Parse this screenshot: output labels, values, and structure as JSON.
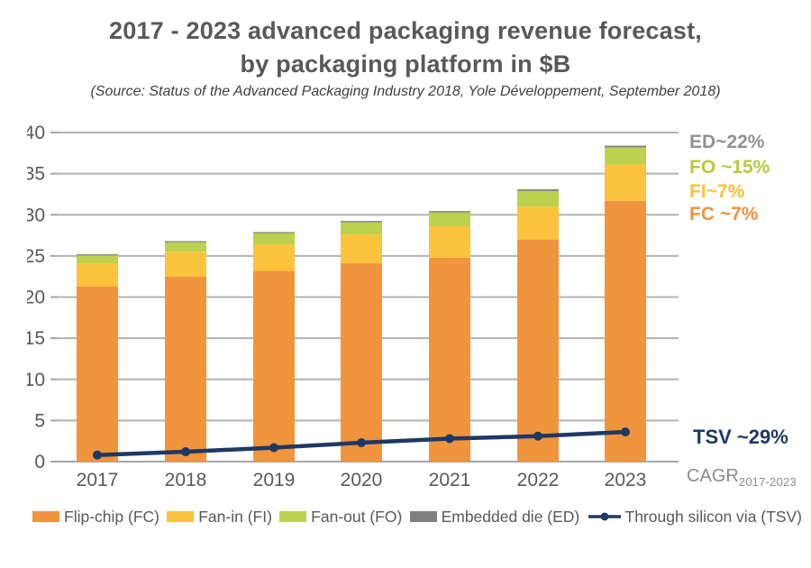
{
  "title": {
    "line1": "2017 - 2023 advanced packaging revenue forecast,",
    "line2": "by packaging platform in $B"
  },
  "source": "(Source: Status of the Advanced Packaging Industry 2018, Yole Développement, September 2018)",
  "annotations": {
    "ed": {
      "text": "ED~22%",
      "color": "#929292"
    },
    "fo": {
      "text": "FO ~15%",
      "color": "#B2CC3F"
    },
    "fi": {
      "text": "FI~7%",
      "color": "#FBBF39"
    },
    "fc": {
      "text": "FC ~7%",
      "color": "#F0943E"
    },
    "tsv": {
      "text": "TSV ~29%",
      "color": "#1F3864"
    },
    "cagr": {
      "label": "CAGR",
      "subscript": "2017-2023",
      "color": "#8C8C8C"
    }
  },
  "chart_data": {
    "type": "bar",
    "subtype": "stacked-bars-with-line-overlay",
    "title": "2017 - 2023 advanced packaging revenue forecast, by packaging platform in $B",
    "xlabel": "",
    "ylabel": "",
    "units": "$B",
    "categories": [
      "2017",
      "2018",
      "2019",
      "2020",
      "2021",
      "2022",
      "2023"
    ],
    "series": [
      {
        "name": "Flip-chip (FC)",
        "type": "bar",
        "color": "#F0943E",
        "values": [
          21.3,
          22.5,
          23.2,
          24.1,
          24.8,
          27.0,
          31.7
        ],
        "cagr_2017_2023": "~7%"
      },
      {
        "name": "Fan-in (FI)",
        "type": "bar",
        "color": "#FCC33C",
        "values": [
          2.8,
          3.0,
          3.2,
          3.5,
          3.8,
          4.0,
          4.4
        ],
        "cagr_2017_2023": "~7%"
      },
      {
        "name": "Fan-out (FO)",
        "type": "bar",
        "color": "#BCD14E",
        "values": [
          1.0,
          1.2,
          1.4,
          1.5,
          1.7,
          1.9,
          2.1
        ],
        "cagr_2017_2023": "~15%"
      },
      {
        "name": "Embedded die (ED)",
        "type": "bar",
        "color": "#808080",
        "values": [
          0.1,
          0.1,
          0.1,
          0.15,
          0.15,
          0.2,
          0.2
        ],
        "cagr_2017_2023": "~22%"
      },
      {
        "name": "Through silicon via (TSV)",
        "type": "line",
        "color": "#1F3864",
        "values": [
          0.8,
          1.2,
          1.7,
          2.3,
          2.8,
          3.1,
          3.6
        ],
        "cagr_2017_2023": "~29%"
      }
    ],
    "ylim": [
      0,
      40
    ],
    "yticks": [
      0,
      5,
      10,
      15,
      20,
      25,
      30,
      35,
      40
    ],
    "grid": true,
    "gridline_color": "#B3B3B3",
    "axis_line_color": "#A6A6A6",
    "tick_label_color": "#595959",
    "legend_position": "bottom"
  }
}
